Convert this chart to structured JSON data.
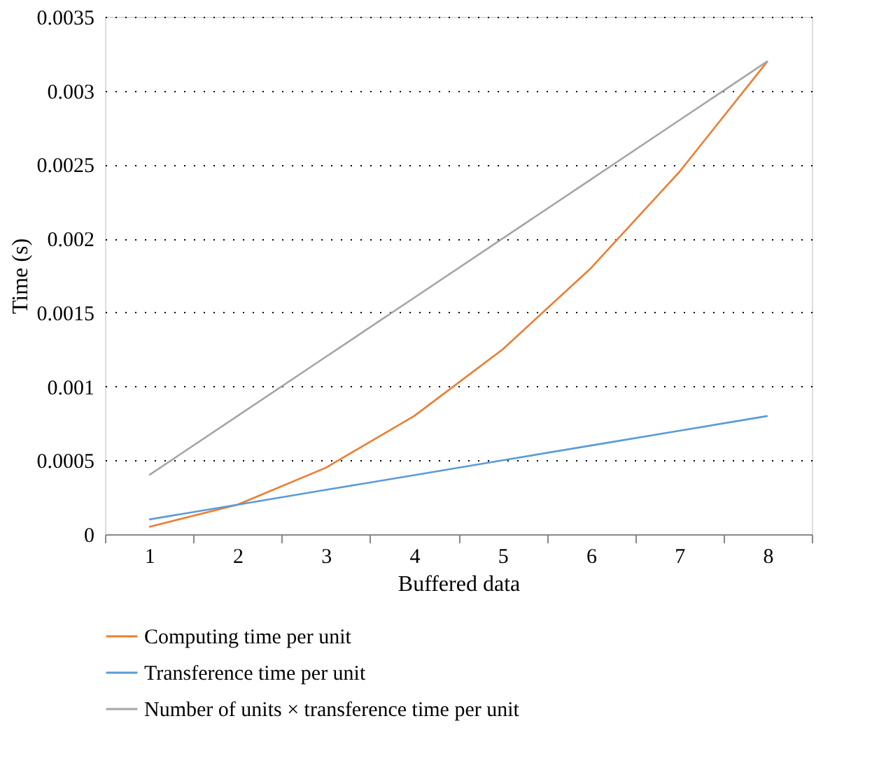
{
  "chart_data": {
    "type": "line",
    "xlabel": "Buffered data",
    "ylabel": "Time (s)",
    "categories": [
      "1",
      "2",
      "3",
      "4",
      "5",
      "6",
      "7",
      "8"
    ],
    "series": [
      {
        "name": "Computing time per unit",
        "color": "#ed7d31",
        "values": [
          5e-05,
          0.0002,
          0.00045,
          0.0008,
          0.00125,
          0.0018,
          0.00245,
          0.0032
        ]
      },
      {
        "name": "Transference time per unit",
        "color": "#5b9bd5",
        "values": [
          0.0001,
          0.0002,
          0.0003,
          0.0004,
          0.0005,
          0.0006,
          0.0007,
          0.0008
        ]
      },
      {
        "name": "Number of units × transference time per unit",
        "color": "#a5a5a5",
        "values": [
          0.0004,
          0.0008,
          0.0012,
          0.0016,
          0.002,
          0.0024,
          0.0028,
          0.0032
        ]
      }
    ],
    "ylim": [
      0,
      0.0035
    ],
    "yticks": [
      0,
      0.0005,
      0.001,
      0.0015,
      0.002,
      0.0025,
      0.003,
      0.0035
    ],
    "grid": "y",
    "legend": "bottom",
    "marker": "none",
    "line_style": "solid"
  }
}
